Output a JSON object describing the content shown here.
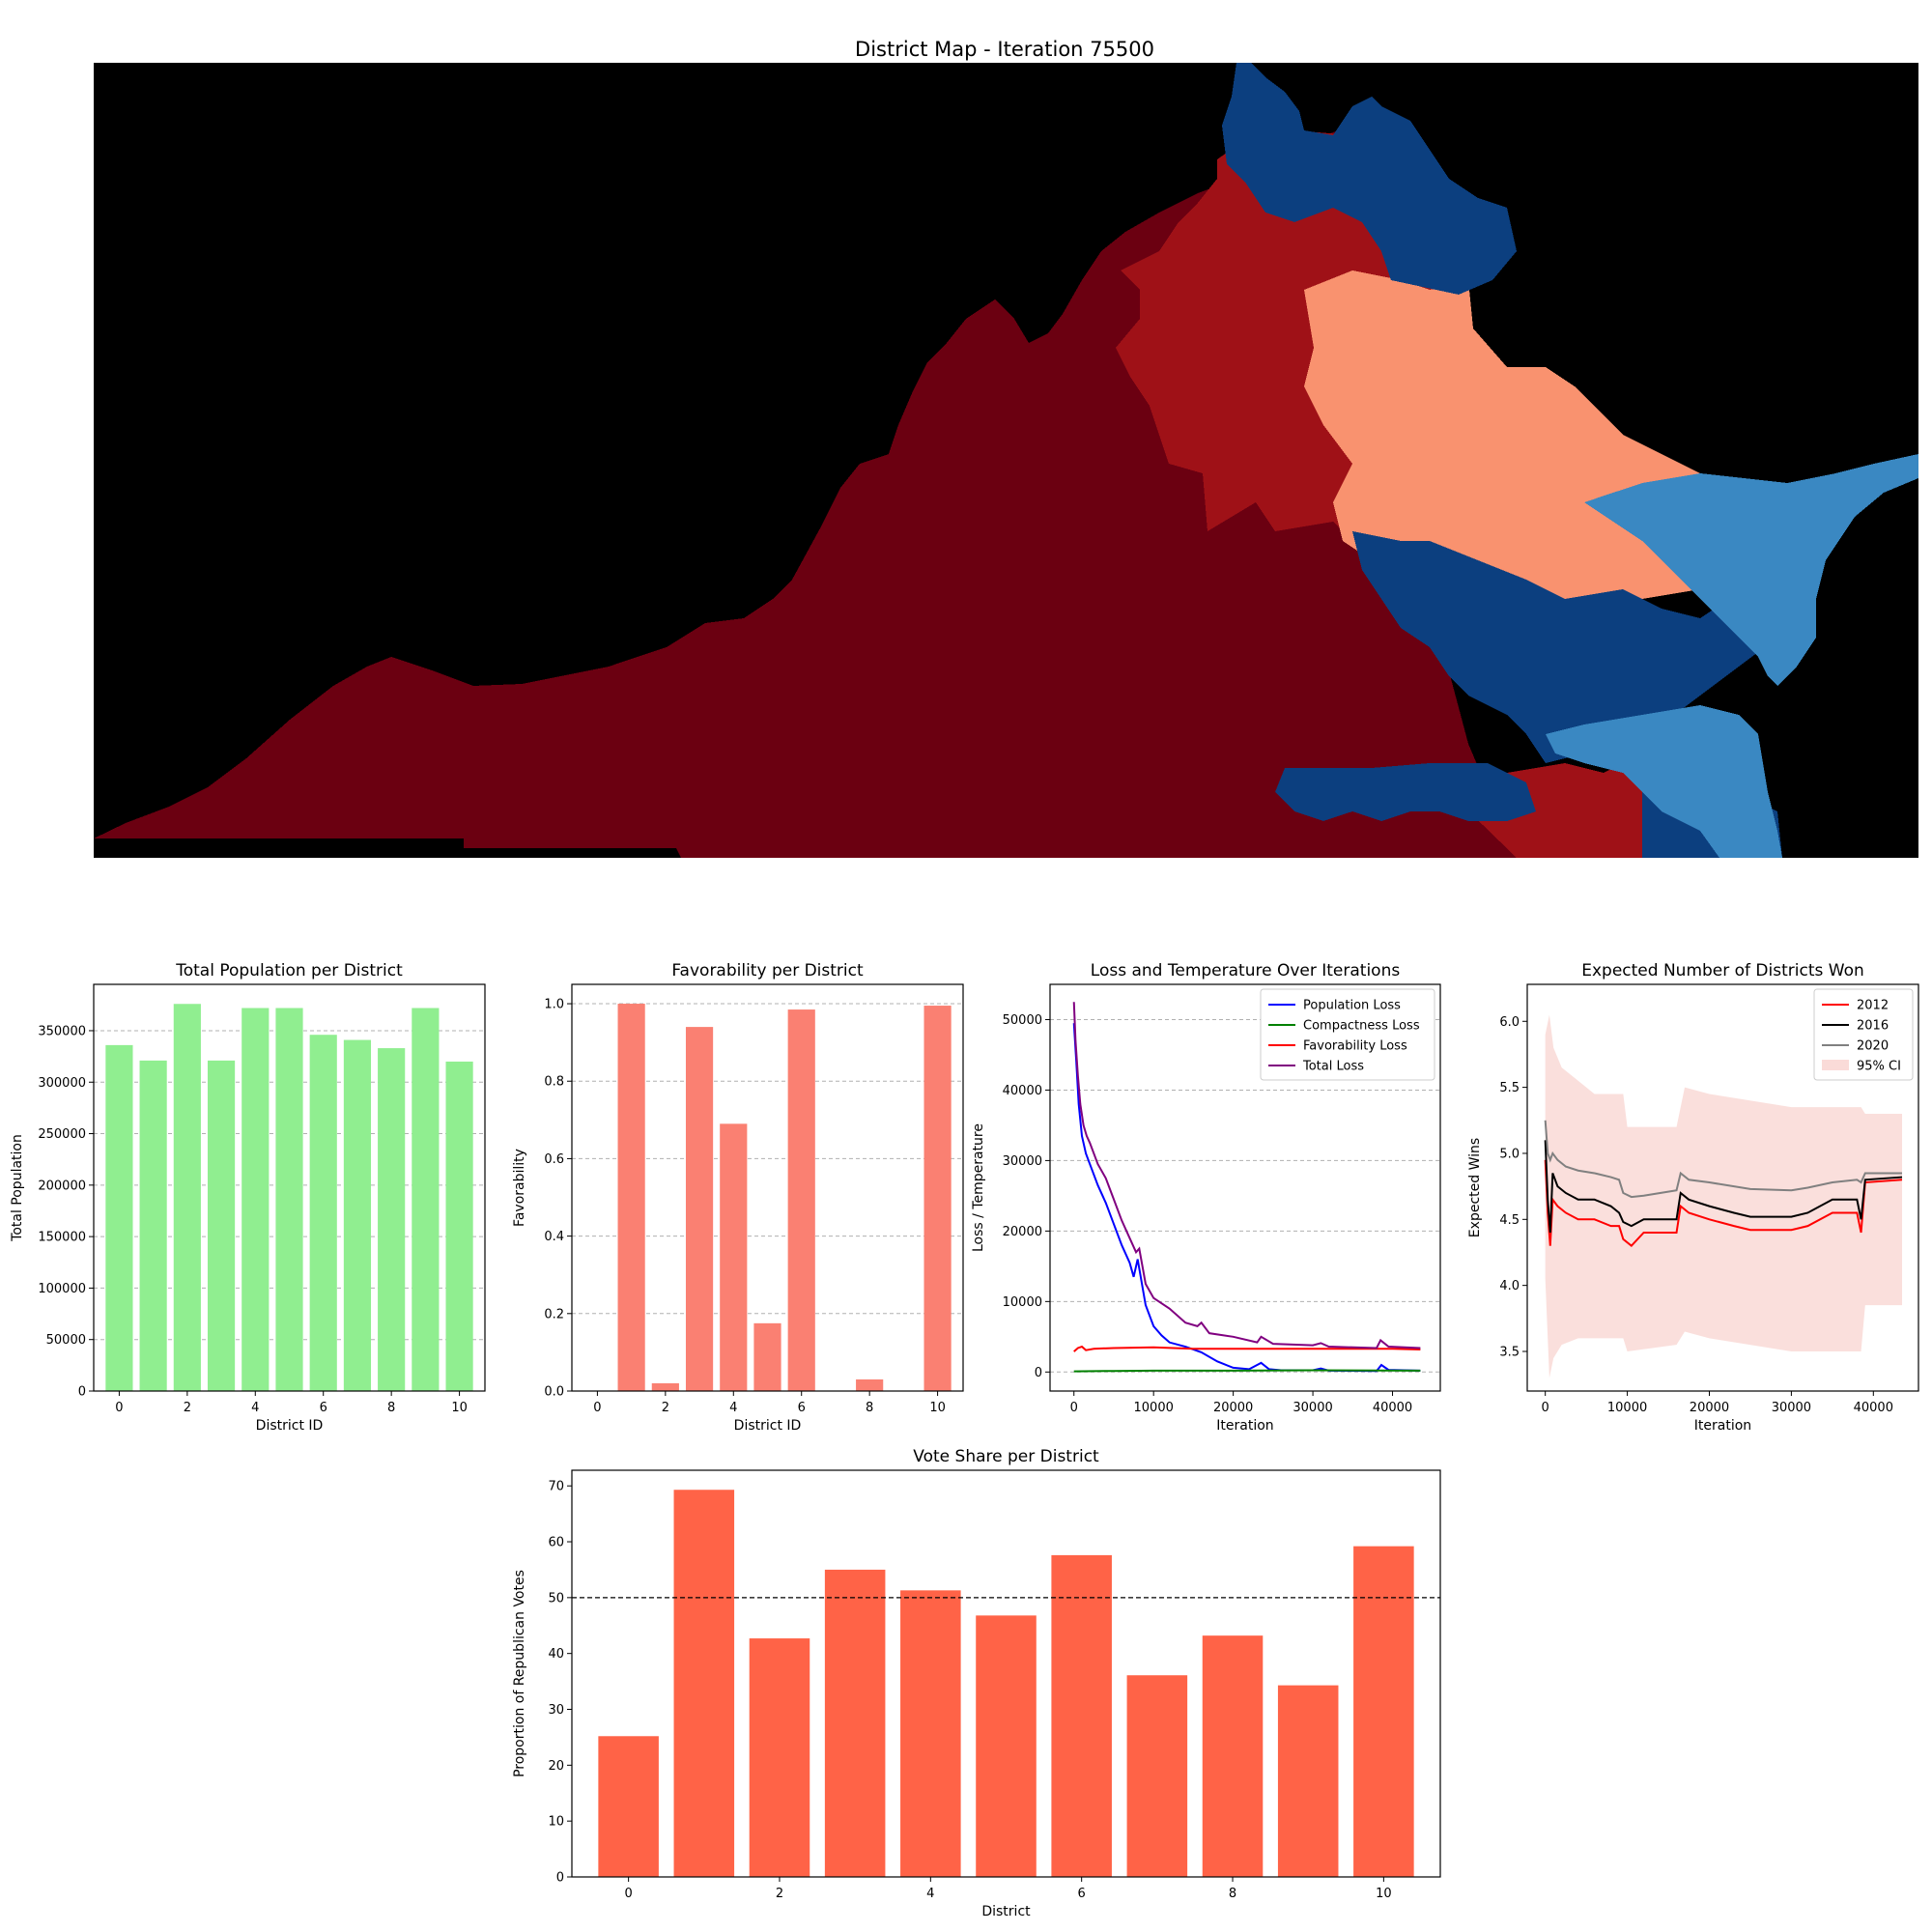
{
  "chart_data": [
    {
      "type": "heatmap",
      "title": "District Map - Iteration 75500",
      "background_color": "#000000",
      "district_colors": [
        "#6b0011",
        "#9f1117",
        "#f9926f",
        "#0c3f7f",
        "#3a88c2"
      ]
    },
    {
      "type": "bar",
      "title": "Total Population per District",
      "xlabel": "District ID",
      "ylabel": "Total Population",
      "categories": [
        0,
        1,
        2,
        3,
        4,
        5,
        6,
        7,
        8,
        9,
        10
      ],
      "values": [
        336000,
        321000,
        376000,
        321000,
        372000,
        372000,
        346000,
        341000,
        333000,
        372000,
        320000
      ],
      "ylim": [
        0,
        395000
      ],
      "yticks": [
        0,
        50000,
        100000,
        150000,
        200000,
        250000,
        300000,
        350000
      ],
      "xticks": [
        0,
        2,
        4,
        6,
        8,
        10
      ],
      "color": "#90ee90",
      "grid": "y"
    },
    {
      "type": "bar",
      "title": "Favorability per District",
      "xlabel": "District ID",
      "ylabel": "Favorability",
      "categories": [
        0,
        1,
        2,
        3,
        4,
        5,
        6,
        7,
        8,
        9,
        10
      ],
      "values": [
        0,
        1.0,
        0.02,
        0.94,
        0.69,
        0.175,
        0.985,
        0,
        0.03,
        0,
        0.995
      ],
      "ylim": [
        0,
        1.05
      ],
      "yticks": [
        0.0,
        0.2,
        0.4,
        0.6,
        0.8,
        1.0
      ],
      "ytick_labels": [
        "0.0",
        "0.2",
        "0.4",
        "0.6",
        "0.8",
        "1.0"
      ],
      "xticks": [
        0,
        2,
        4,
        6,
        8,
        10
      ],
      "color": "#fa8072",
      "grid": "y"
    },
    {
      "type": "line",
      "title": "Loss and Temperature Over Iterations",
      "xlabel": "Iteration",
      "ylabel": "Loss / Temperature",
      "xlim": [
        -3000,
        46000
      ],
      "ylim": [
        -2700,
        55000
      ],
      "xticks": [
        0,
        10000,
        20000,
        30000,
        40000
      ],
      "yticks": [
        0,
        10000,
        20000,
        30000,
        40000,
        50000
      ],
      "legend": "top-right",
      "grid": "y",
      "series": [
        {
          "name": "Population Loss",
          "color": "#0000ff",
          "x": [
            0,
            300,
            600,
            1000,
            1500,
            2000,
            3000,
            4000,
            5000,
            6000,
            7000,
            7500,
            8000,
            9000,
            10000,
            11000,
            12000,
            14000,
            16000,
            18000,
            20000,
            22000,
            23500,
            24500,
            26000,
            30000,
            31000,
            32000,
            38000,
            38600,
            39500,
            43500
          ],
          "y": [
            49500,
            44000,
            38000,
            33500,
            31000,
            29500,
            26500,
            24000,
            21000,
            18000,
            15500,
            13500,
            16000,
            9500,
            6500,
            5200,
            4200,
            3600,
            2800,
            1500,
            600,
            400,
            1300,
            400,
            250,
            250,
            500,
            200,
            150,
            1000,
            300,
            200
          ]
        },
        {
          "name": "Compactness Loss",
          "color": "#008000",
          "x": [
            0,
            5000,
            10000,
            20000,
            30000,
            43500
          ],
          "y": [
            100,
            150,
            200,
            200,
            250,
            200
          ]
        },
        {
          "name": "Favorability Loss",
          "color": "#ff0000",
          "x": [
            0,
            500,
            1000,
            1500,
            2500,
            5000,
            10000,
            15000,
            20000,
            30000,
            40000,
            43500
          ],
          "y": [
            2900,
            3400,
            3600,
            3100,
            3300,
            3400,
            3500,
            3300,
            3300,
            3300,
            3300,
            3200
          ]
        },
        {
          "name": "Total Loss",
          "color": "#800080",
          "x": [
            0,
            200,
            500,
            800,
            1200,
            1600,
            2000,
            3000,
            4000,
            5000,
            6000,
            7000,
            7800,
            8200,
            9000,
            10000,
            12000,
            14000,
            15500,
            16000,
            17000,
            20000,
            23000,
            23500,
            25000,
            30000,
            31000,
            32000,
            38000,
            38500,
            39500,
            43500
          ],
          "y": [
            52500,
            47000,
            42000,
            38000,
            35000,
            33500,
            32500,
            29500,
            27500,
            24500,
            21500,
            19000,
            17000,
            17500,
            12500,
            10500,
            9000,
            7000,
            6500,
            7000,
            5500,
            5000,
            4200,
            5000,
            4000,
            3800,
            4100,
            3600,
            3400,
            4500,
            3600,
            3400
          ]
        }
      ]
    },
    {
      "type": "line",
      "title": "Expected Number of Districts Won",
      "xlabel": "Iteration",
      "ylabel": "Expected Wins",
      "xlim": [
        -2200,
        45500
      ],
      "ylim": [
        3.2,
        6.28
      ],
      "xticks": [
        0,
        10000,
        20000,
        30000,
        40000
      ],
      "yticks": [
        3.5,
        4.0,
        4.5,
        5.0,
        5.5,
        6.0
      ],
      "ytick_labels": [
        "3.5",
        "4.0",
        "4.5",
        "5.0",
        "5.5",
        "6.0"
      ],
      "legend": "top-right",
      "band_name": "95% CI",
      "band_color": "#fadbd8",
      "ci_upper_x": [
        0,
        500,
        1000,
        2000,
        4000,
        6000,
        8000,
        9500,
        10000,
        16000,
        17000,
        20000,
        30000,
        38500,
        39000,
        43500
      ],
      "ci_upper_y": [
        5.9,
        6.05,
        5.8,
        5.65,
        5.55,
        5.45,
        5.45,
        5.45,
        5.2,
        5.2,
        5.5,
        5.45,
        5.35,
        5.35,
        5.3,
        5.3
      ],
      "ci_lower_x": [
        0,
        500,
        1000,
        2000,
        4000,
        6000,
        8000,
        9500,
        10000,
        16000,
        17000,
        20000,
        30000,
        38500,
        39000,
        43500
      ],
      "ci_lower_y": [
        4.05,
        3.3,
        3.45,
        3.55,
        3.6,
        3.6,
        3.6,
        3.6,
        3.5,
        3.55,
        3.65,
        3.6,
        3.5,
        3.5,
        3.85,
        3.85
      ],
      "series": [
        {
          "name": "2012",
          "color": "#ff0000",
          "x": [
            0,
            300,
            600,
            900,
            1500,
            2500,
            4000,
            6000,
            8000,
            9000,
            9500,
            10500,
            12000,
            14000,
            16000,
            16500,
            17500,
            20000,
            23000,
            25000,
            30000,
            32000,
            35000,
            38000,
            38500,
            39000,
            43500
          ],
          "y": [
            4.95,
            4.55,
            4.3,
            4.65,
            4.6,
            4.55,
            4.5,
            4.5,
            4.45,
            4.45,
            4.35,
            4.3,
            4.4,
            4.4,
            4.4,
            4.6,
            4.55,
            4.5,
            4.45,
            4.42,
            4.42,
            4.45,
            4.55,
            4.55,
            4.4,
            4.78,
            4.8
          ]
        },
        {
          "name": "2016",
          "color": "#000000",
          "x": [
            0,
            300,
            600,
            900,
            1500,
            2500,
            4000,
            6000,
            8000,
            9000,
            9500,
            10500,
            12000,
            14000,
            16000,
            16500,
            17500,
            20000,
            23000,
            25000,
            30000,
            32000,
            35000,
            38000,
            38500,
            39000,
            43500
          ],
          "y": [
            5.1,
            4.65,
            4.4,
            4.85,
            4.75,
            4.7,
            4.65,
            4.65,
            4.6,
            4.55,
            4.48,
            4.45,
            4.5,
            4.5,
            4.5,
            4.7,
            4.65,
            4.6,
            4.55,
            4.52,
            4.52,
            4.55,
            4.65,
            4.65,
            4.5,
            4.8,
            4.82
          ]
        },
        {
          "name": "2020",
          "color": "#808080",
          "x": [
            0,
            300,
            600,
            900,
            1500,
            2500,
            4000,
            6000,
            8000,
            9000,
            9500,
            10500,
            12000,
            14000,
            16000,
            16500,
            17500,
            20000,
            23000,
            25000,
            30000,
            32000,
            35000,
            38000,
            38500,
            39000,
            43500
          ],
          "y": [
            5.25,
            5.0,
            4.95,
            5.0,
            4.95,
            4.9,
            4.87,
            4.85,
            4.82,
            4.8,
            4.7,
            4.67,
            4.68,
            4.7,
            4.72,
            4.85,
            4.8,
            4.78,
            4.75,
            4.73,
            4.72,
            4.74,
            4.78,
            4.8,
            4.78,
            4.85,
            4.85
          ]
        }
      ]
    },
    {
      "type": "bar",
      "title": "Vote Share per District",
      "xlabel": "District",
      "ylabel": "Proportion of Republican Votes",
      "categories": [
        0,
        1,
        2,
        3,
        4,
        5,
        6,
        7,
        8,
        9,
        10
      ],
      "values": [
        25.2,
        69.3,
        42.7,
        55.0,
        51.3,
        46.8,
        57.6,
        36.1,
        43.2,
        34.3,
        59.2
      ],
      "ylim": [
        0,
        72.8
      ],
      "yticks": [
        0,
        10,
        20,
        30,
        40,
        50,
        60,
        70
      ],
      "xticks": [
        0,
        2,
        4,
        6,
        8,
        10
      ],
      "color": "#ff6347",
      "reference_line": 50
    }
  ]
}
